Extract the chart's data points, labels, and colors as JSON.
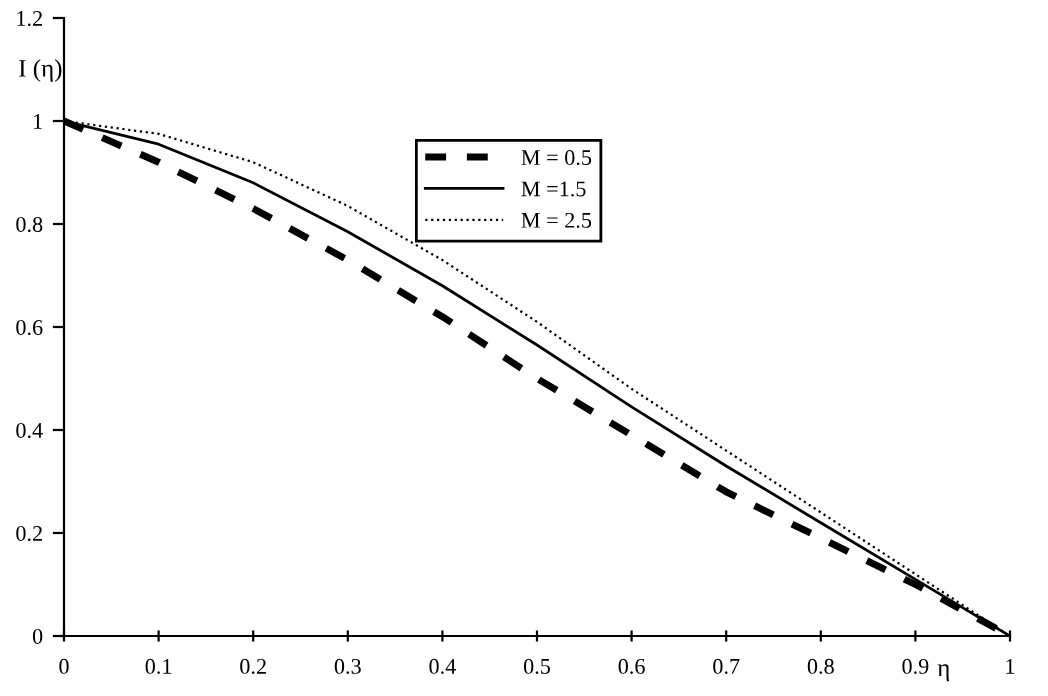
{
  "chart_data": {
    "type": "line",
    "xlabel": "η",
    "ylabel": "I (η)",
    "x": [
      0,
      0.1,
      0.2,
      0.3,
      0.4,
      0.5,
      0.6,
      0.7,
      0.8,
      0.9,
      1.0
    ],
    "series": [
      {
        "name": "M = 0.5",
        "color": "#000000",
        "line_style": "dashed",
        "values": [
          1.0,
          0.92,
          0.83,
          0.73,
          0.62,
          0.5,
          0.39,
          0.28,
          0.19,
          0.1,
          0.0
        ]
      },
      {
        "name": "M =1.5",
        "color": "#000000",
        "line_style": "solid",
        "values": [
          1.0,
          0.955,
          0.88,
          0.785,
          0.68,
          0.565,
          0.445,
          0.33,
          0.22,
          0.11,
          0.0
        ]
      },
      {
        "name": "M = 2.5",
        "color": "#000000",
        "line_style": "dotted",
        "values": [
          1.0,
          0.975,
          0.92,
          0.835,
          0.73,
          0.61,
          0.48,
          0.36,
          0.24,
          0.12,
          0.0
        ]
      }
    ],
    "xlim": [
      0,
      1
    ],
    "xticks": [
      0,
      0.1,
      0.2,
      0.3,
      0.4,
      0.5,
      0.6,
      0.7,
      0.8,
      0.9,
      1
    ],
    "ylim": [
      0,
      1.2
    ],
    "yticks": [
      0,
      0.2,
      0.4,
      0.6,
      0.8,
      1,
      1.2
    ],
    "grid": false,
    "legend": "top",
    "marker": "none"
  }
}
